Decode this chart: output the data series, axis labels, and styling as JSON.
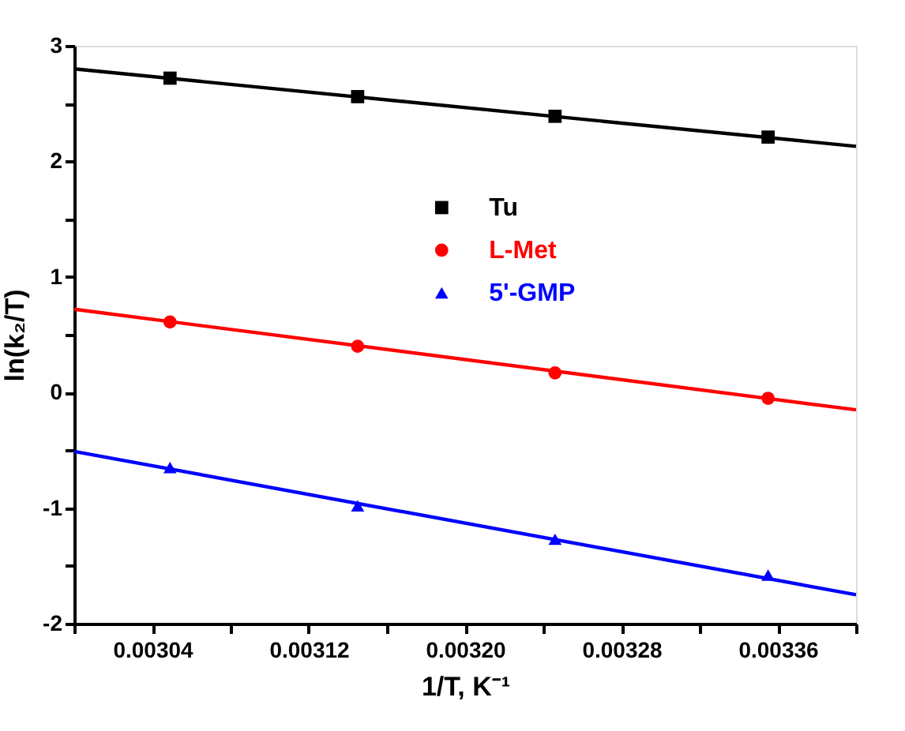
{
  "chart_data": {
    "type": "scatter",
    "xlabel": "1/T, K⁻¹",
    "ylabel": "ln(k₂/T)",
    "xlim": [
      0.003,
      0.0034
    ],
    "ylim": [
      -2,
      3
    ],
    "xticks": [
      {
        "value": 0.003,
        "label": null
      },
      0.00304,
      {
        "value": 0.00308,
        "label": null
      },
      0.00312,
      {
        "value": 0.00316,
        "label": null
      },
      {
        "value": 0.0032,
        "label": "0.00320"
      },
      {
        "value": 0.00324,
        "label": null
      },
      0.00328,
      {
        "value": 0.00332,
        "label": null
      },
      0.00336,
      {
        "value": 0.0034,
        "label": null
      }
    ],
    "yticks": [
      -2,
      {
        "value": -1.5,
        "label": null
      },
      -1,
      {
        "value": -0.5,
        "label": null
      },
      0,
      {
        "value": 0.5,
        "label": null
      },
      1,
      {
        "value": 1.5,
        "label": null
      },
      2,
      {
        "value": 2.5,
        "label": null
      },
      3
    ],
    "legend": "top right",
    "grid": false,
    "series": [
      {
        "name": "Tu",
        "color": "#000000",
        "marker": "square",
        "x": [
          0.003049,
          0.003145,
          0.003246,
          0.003355
        ],
        "values": [
          2.72,
          2.56,
          2.39,
          2.21
        ]
      },
      {
        "name": "L-Met",
        "color": "#ff0000",
        "marker": "circle",
        "x": [
          0.003049,
          0.003145,
          0.003246,
          0.003355
        ],
        "values": [
          0.61,
          0.4,
          0.17,
          -0.05
        ]
      },
      {
        "name": "5'-GMP",
        "color": "#0000ff",
        "marker": "triangle",
        "x": [
          0.003049,
          0.003145,
          0.003246,
          0.003355
        ],
        "values": [
          -0.65,
          -0.98,
          -1.27,
          -1.58
        ]
      },
      {
        "type": "line",
        "color": "#000000",
        "x": [
          0.003,
          0.0034
        ],
        "values": [
          2.8,
          2.13
        ]
      },
      {
        "type": "line",
        "color": "#ff0000",
        "x": [
          0.003,
          0.0034
        ],
        "values": [
          0.72,
          -0.15
        ]
      },
      {
        "type": "line",
        "color": "#0000ff",
        "x": [
          0.003,
          0.0034
        ],
        "values": [
          -0.51,
          -1.75
        ]
      }
    ]
  }
}
